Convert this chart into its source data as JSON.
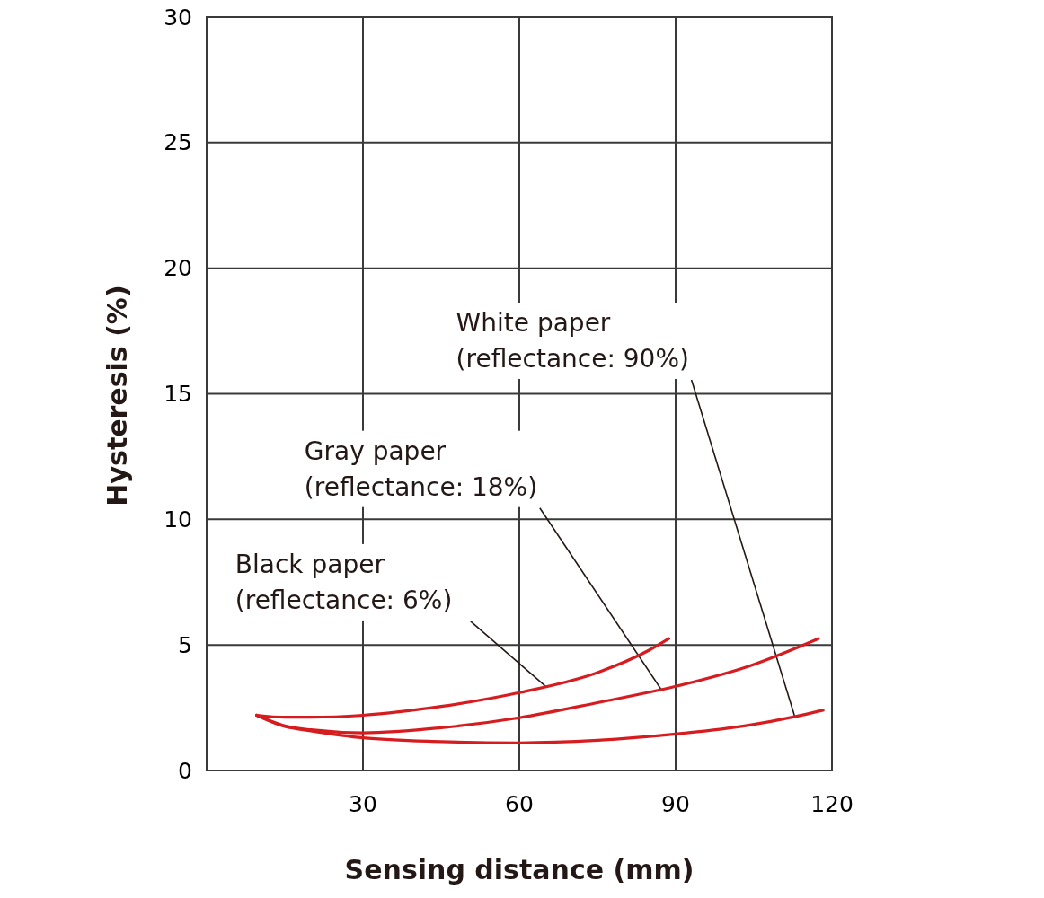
{
  "chart_data": {
    "type": "line",
    "xlabel": "Sensing distance (mm)",
    "ylabel": "Hysteresis (%)",
    "xlim": [
      0,
      120
    ],
    "xticks": [
      30,
      60,
      90,
      120
    ],
    "ylim": [
      0,
      30
    ],
    "yticks": [
      0,
      5,
      10,
      15,
      20,
      25,
      30
    ],
    "grid": true,
    "line_style": "solid",
    "series": [
      {
        "name": "Black paper (reflectance: 6%)",
        "color": "#d71c20",
        "x": [
          9.6,
          15,
          20,
          30,
          45,
          60,
          75,
          85,
          88.7
        ],
        "values": [
          2.2,
          2.12,
          2.12,
          2.2,
          2.55,
          3.1,
          3.9,
          4.8,
          5.25
        ]
      },
      {
        "name": "Gray paper (reflectance: 18%)",
        "color": "#d71c20",
        "x": [
          9.6,
          15,
          20,
          30,
          45,
          60,
          75,
          90,
          104,
          117.4
        ],
        "values": [
          2.2,
          1.78,
          1.62,
          1.5,
          1.7,
          2.1,
          2.7,
          3.35,
          4.15,
          5.25
        ]
      },
      {
        "name": "White paper (reflectance: 90%)",
        "color": "#d71c20",
        "x": [
          9.6,
          15,
          20,
          30,
          45,
          60,
          75,
          90,
          104,
          113,
          118.3
        ],
        "values": [
          2.2,
          1.75,
          1.58,
          1.3,
          1.15,
          1.1,
          1.2,
          1.45,
          1.8,
          2.15,
          2.4
        ]
      }
    ]
  }
}
